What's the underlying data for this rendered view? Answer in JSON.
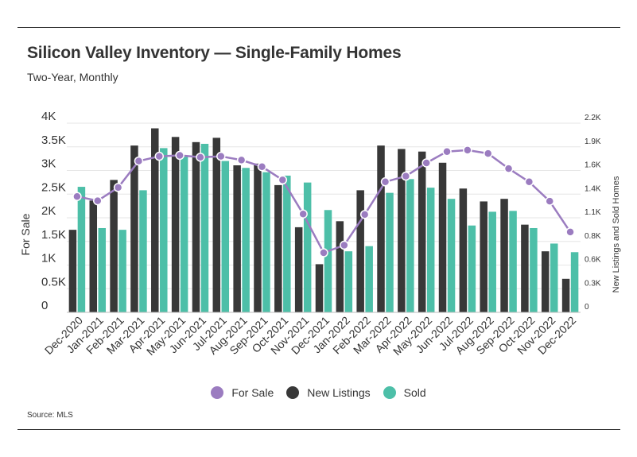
{
  "title": "Silicon Valley Inventory — Single-Family Homes",
  "subtitle": "Two-Year, Monthly",
  "source": "Source: MLS",
  "colors": {
    "for_sale": "#9b7cc0",
    "new_listings": "#383838",
    "sold": "#4dbfa8"
  },
  "legend": [
    {
      "label": "For Sale",
      "color": "#9b7cc0"
    },
    {
      "label": "New Listings",
      "color": "#383838"
    },
    {
      "label": "Sold",
      "color": "#4dbfa8"
    }
  ],
  "chart_data": {
    "type": "bar",
    "title": "Silicon Valley Inventory — Single-Family Homes",
    "subtitle": "Two-Year, Monthly",
    "categories": [
      "Dec-2020",
      "Jan-2021",
      "Feb-2021",
      "Mar-2021",
      "Apr-2021",
      "May-2021",
      "Jun-2021",
      "Jul-2021",
      "Aug-2021",
      "Sep-2021",
      "Oct-2021",
      "Nov-2021",
      "Dec-2021",
      "Jan-2022",
      "Feb-2022",
      "Mar-2022",
      "Apr-2022",
      "May-2022",
      "Jun-2022",
      "Jul-2022",
      "Aug-2022",
      "Sep-2022",
      "Oct-2022",
      "Nov-2022",
      "Dec-2022"
    ],
    "ylabel": "For Sale",
    "y2label": "New Listings and Sold Homes",
    "ylim": [
      0,
      4000
    ],
    "y2lim": [
      0,
      2200
    ],
    "yticks": [
      "0",
      "0.5K",
      "1K",
      "1.5K",
      "2K",
      "2.5K",
      "3K",
      "3.5K",
      "4K"
    ],
    "y2ticks": [
      "0",
      "0.3K",
      "0.6K",
      "0.8K",
      "1.1K",
      "1.4K",
      "1.6K",
      "1.9K",
      "2.2K"
    ],
    "grid": true,
    "legend_position": "bottom",
    "series": [
      {
        "name": "For Sale",
        "type": "line",
        "axis": "left",
        "values": [
          2450,
          2360,
          2640,
          3200,
          3300,
          3320,
          3280,
          3300,
          3220,
          3080,
          2800,
          2080,
          1260,
          1420,
          2070,
          2760,
          2880,
          3160,
          3400,
          3430,
          3360,
          3040,
          2760,
          2350,
          1700
        ]
      },
      {
        "name": "New Listings",
        "type": "bar",
        "axis": "right",
        "values": [
          960,
          1300,
          1540,
          1940,
          2140,
          2040,
          1980,
          2030,
          1710,
          1730,
          1480,
          990,
          560,
          1060,
          1420,
          1940,
          1900,
          1870,
          1740,
          1440,
          1290,
          1320,
          1020,
          710,
          390
        ]
      },
      {
        "name": "Sold",
        "type": "bar",
        "axis": "right",
        "values": [
          1460,
          980,
          960,
          1420,
          1910,
          1810,
          1960,
          1760,
          1680,
          1630,
          1590,
          1510,
          1190,
          710,
          770,
          1390,
          1550,
          1450,
          1320,
          1010,
          1170,
          1180,
          980,
          800,
          700
        ]
      }
    ]
  }
}
